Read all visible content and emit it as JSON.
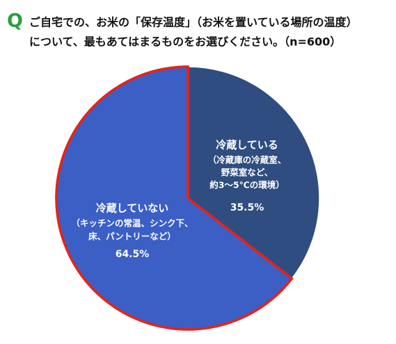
{
  "chart_data": {
    "type": "pie",
    "title_marker": "Q",
    "title_marker_color": "#2e9e3e",
    "title_lines": [
      "ご自宅での、お米の「保存温度」（お米を置いている場所の温度）",
      "について、最もあてはまるものをお選びください。（n=600）"
    ],
    "categories": [
      "冷蔵している",
      "冷蔵していない"
    ],
    "descriptions": [
      [
        "（冷蔵庫の冷蔵室、",
        "野菜室など、",
        "約3～5℃の環境）"
      ],
      [
        "（キッチンの常温、シンク下、",
        "床、パントリーなど）"
      ]
    ],
    "values": [
      35.5,
      64.5
    ],
    "value_labels": [
      "35.5%",
      "64.5%"
    ],
    "colors": [
      "#2f4d80",
      "#3b5fc4"
    ],
    "edge_colors": [
      "#ffffff",
      "#e3241c"
    ]
  }
}
